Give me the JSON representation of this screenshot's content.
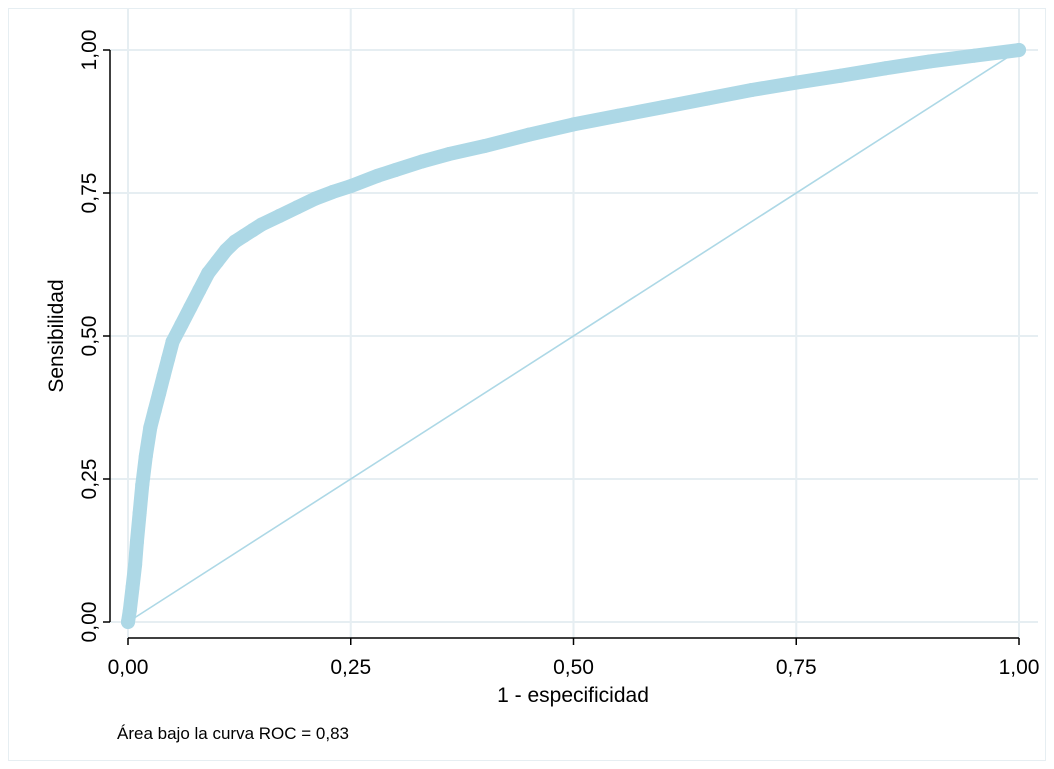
{
  "chart_data": {
    "type": "line",
    "title": "",
    "xlabel": "1 - especificidad",
    "ylabel": "Sensibilidad",
    "xlim": [
      0,
      1
    ],
    "ylim": [
      0,
      1
    ],
    "x_ticks": [
      0,
      0.25,
      0.5,
      0.75,
      1
    ],
    "y_ticks": [
      0,
      0.25,
      0.5,
      0.75,
      1
    ],
    "x_tick_labels": [
      "0,00",
      "0,25",
      "0,50",
      "0,75",
      "1,00"
    ],
    "y_tick_labels": [
      "0,00",
      "0,25",
      "0,50",
      "0,75",
      "1,00"
    ],
    "grid": true,
    "legend": "none",
    "note": "Área bajo la curva ROC = 0,83",
    "colors": {
      "curve": "#add8e6",
      "reference": "#add8e6",
      "grid": "#e6eef2",
      "axis": "#000000"
    },
    "series": [
      {
        "style": "markers",
        "x": [
          0,
          0.002,
          0.005,
          0.008,
          0.01,
          0.013,
          0.016,
          0.02,
          0.025,
          0.03,
          0.035,
          0.04,
          0.045,
          0.05,
          0.06,
          0.07,
          0.08,
          0.09,
          0.1,
          0.11,
          0.12,
          0.13,
          0.14,
          0.15,
          0.17,
          0.19,
          0.21,
          0.23,
          0.25,
          0.28,
          0.3,
          0.33,
          0.36,
          0.4,
          0.45,
          0.5,
          0.55,
          0.6,
          0.65,
          0.7,
          0.75,
          0.8,
          0.85,
          0.9,
          0.95,
          1.0
        ],
        "y": [
          0,
          0.02,
          0.06,
          0.1,
          0.14,
          0.19,
          0.24,
          0.29,
          0.34,
          0.37,
          0.4,
          0.43,
          0.46,
          0.49,
          0.52,
          0.55,
          0.58,
          0.61,
          0.63,
          0.65,
          0.665,
          0.675,
          0.685,
          0.695,
          0.71,
          0.725,
          0.74,
          0.752,
          0.762,
          0.78,
          0.79,
          0.805,
          0.818,
          0.832,
          0.852,
          0.87,
          0.885,
          0.9,
          0.915,
          0.93,
          0.943,
          0.955,
          0.968,
          0.98,
          0.99,
          1.0
        ]
      },
      {
        "style": "line",
        "x": [
          0,
          1
        ],
        "y": [
          0,
          1
        ]
      }
    ]
  }
}
